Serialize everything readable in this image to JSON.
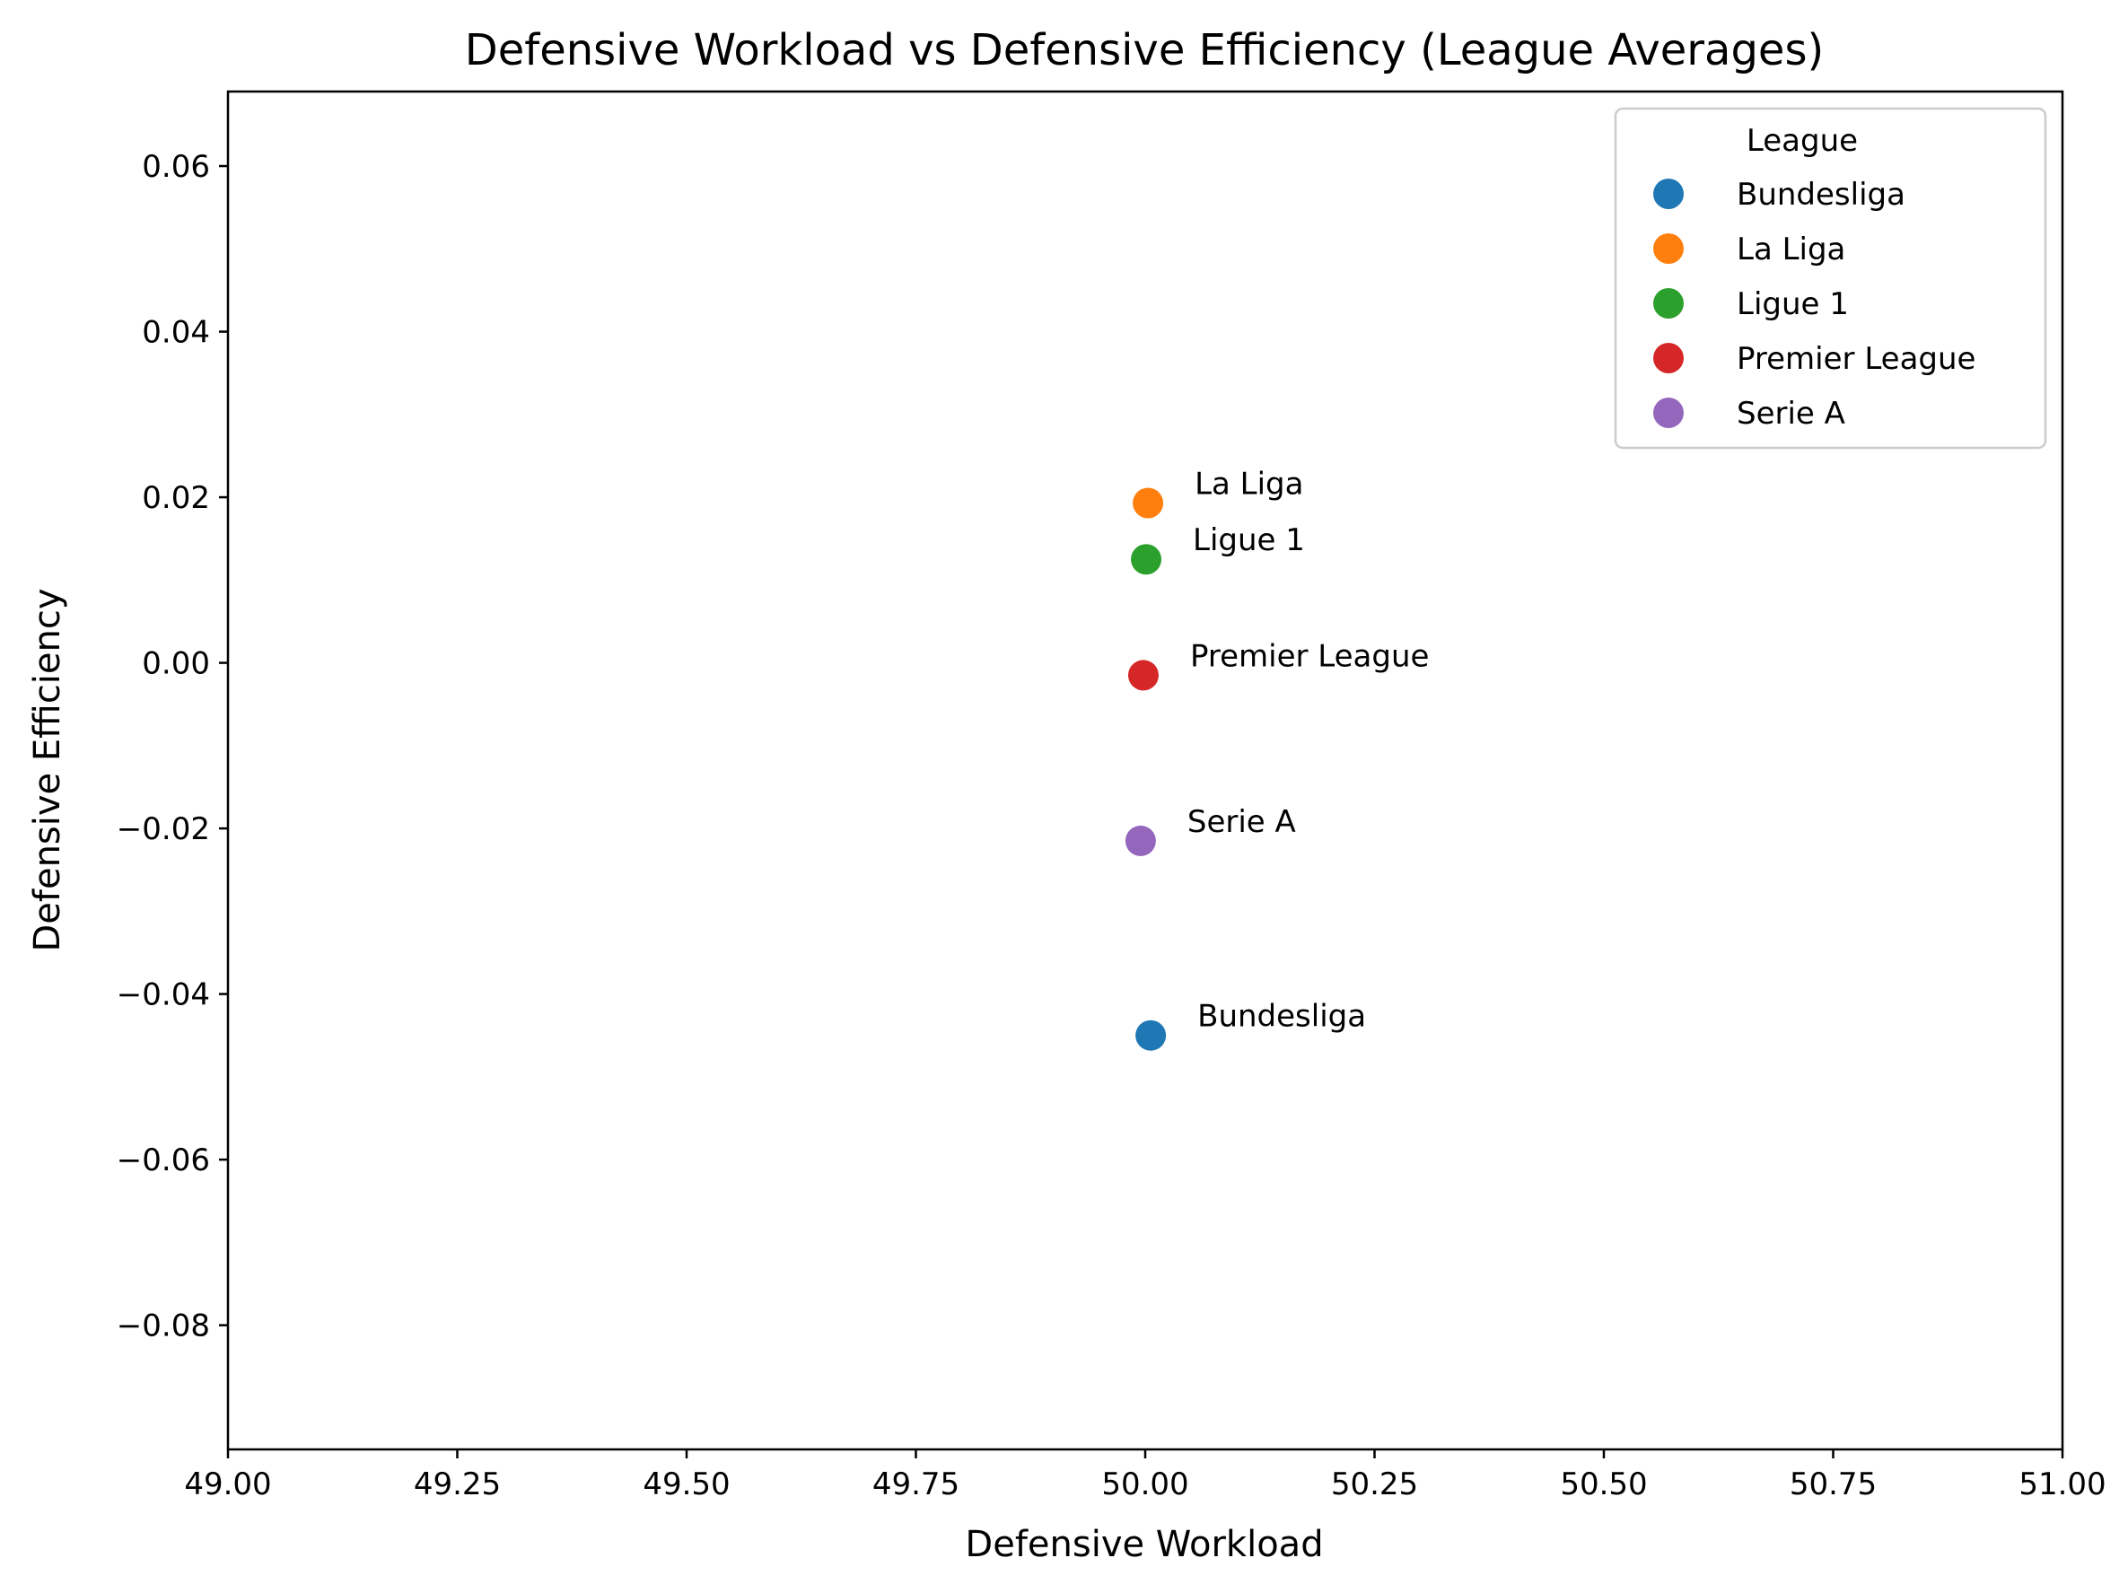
{
  "chart_data": {
    "type": "scatter",
    "title": "Defensive Workload vs Defensive Efficiency (League Averages)",
    "xlabel": "Defensive Workload",
    "ylabel": "Defensive Efficiency",
    "xlim": [
      49.0,
      51.0
    ],
    "ylim": [
      -0.095,
      0.069
    ],
    "x_ticks": [
      49.0,
      49.25,
      49.5,
      49.75,
      50.0,
      50.25,
      50.5,
      50.75,
      51.0
    ],
    "x_tick_labels": [
      "49.00",
      "49.25",
      "49.50",
      "49.75",
      "50.00",
      "50.25",
      "50.50",
      "50.75",
      "51.00"
    ],
    "y_ticks": [
      0.06,
      0.04,
      0.02,
      0.0,
      -0.02,
      -0.04,
      -0.06,
      -0.08
    ],
    "y_tick_labels": [
      "0.06",
      "0.04",
      "0.02",
      "0.00",
      "−0.02",
      "−0.04",
      "−0.06",
      "−0.08"
    ],
    "grid": false,
    "legend": {
      "title": "League",
      "placement": "top-right"
    },
    "series": [
      {
        "name": "Bundesliga",
        "color": "#1f77b4",
        "x": 50.006,
        "y": -0.045,
        "label": "Bundesliga"
      },
      {
        "name": "La Liga",
        "color": "#ff7f0e",
        "x": 50.003,
        "y": 0.0193,
        "label": "La Liga"
      },
      {
        "name": "Ligue 1",
        "color": "#2ca02c",
        "x": 50.001,
        "y": 0.0125,
        "label": "Ligue 1"
      },
      {
        "name": "Premier League",
        "color": "#d62728",
        "x": 49.998,
        "y": -0.0015,
        "label": "Premier League"
      },
      {
        "name": "Serie A",
        "color": "#9467bd",
        "x": 49.995,
        "y": -0.0215,
        "label": "Serie A"
      }
    ]
  }
}
